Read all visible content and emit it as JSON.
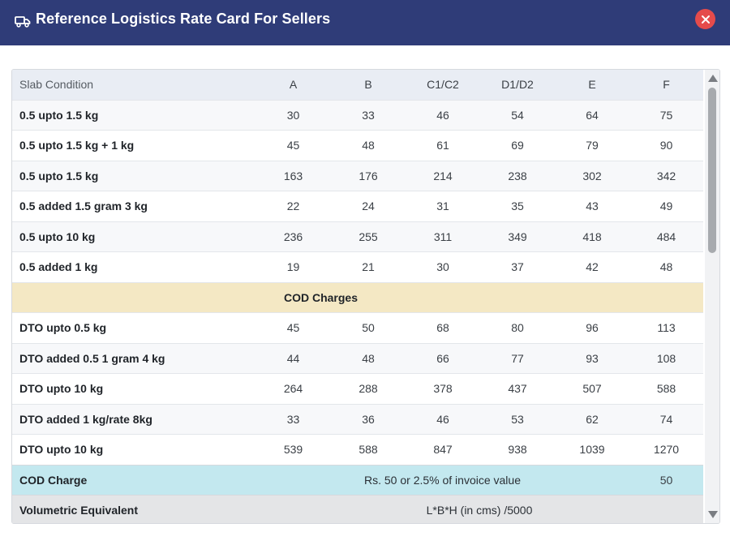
{
  "window": {
    "title": "Reference Logistics Rate Card For Sellers"
  },
  "icons": {
    "header": "truck-icon",
    "close": "close-icon"
  },
  "colors": {
    "header_bg": "#2f3c78",
    "close_bg": "#e54b4b",
    "section_bg": "#f4e8c4",
    "cod_bg": "#c3e8ef",
    "volumetric_bg": "#e4e5e7"
  },
  "table": {
    "headers": [
      "Slab Condition",
      "A",
      "B",
      "C1/C2",
      "D1/D2",
      "E",
      "F"
    ],
    "rows_forward": [
      {
        "label": "0.5 upto 1.5 kg",
        "values": [
          "30",
          "33",
          "46",
          "54",
          "64",
          "75"
        ]
      },
      {
        "label": "0.5 upto 1.5 kg + 1 kg",
        "values": [
          "45",
          "48",
          "61",
          "69",
          "79",
          "90"
        ]
      },
      {
        "label": "0.5 upto 1.5 kg",
        "values": [
          "163",
          "176",
          "214",
          "238",
          "302",
          "342"
        ]
      },
      {
        "label": "0.5 added 1.5 gram 3 kg",
        "values": [
          "22",
          "24",
          "31",
          "35",
          "43",
          "49"
        ]
      },
      {
        "label": "0.5 upto 10 kg",
        "values": [
          "236",
          "255",
          "311",
          "349",
          "418",
          "484"
        ]
      },
      {
        "label": "0.5 added 1 kg",
        "values": [
          "19",
          "21",
          "30",
          "37",
          "42",
          "48"
        ]
      }
    ],
    "section_title": "COD Charges",
    "rows_dto": [
      {
        "label": "DTO upto 0.5 kg",
        "values": [
          "45",
          "50",
          "68",
          "80",
          "96",
          "113"
        ]
      },
      {
        "label": "DTO added 0.5 1 gram 4 kg",
        "values": [
          "44",
          "48",
          "66",
          "77",
          "93",
          "108"
        ]
      },
      {
        "label": "DTO upto 10 kg",
        "values": [
          "264",
          "288",
          "378",
          "437",
          "507",
          "588"
        ]
      },
      {
        "label": "DTO added 1 kg/rate 8kg",
        "values": [
          "33",
          "36",
          "46",
          "53",
          "62",
          "74"
        ]
      },
      {
        "label": "DTO upto 10 kg",
        "values": [
          "539",
          "588",
          "847",
          "938",
          "1039",
          "1270"
        ]
      }
    ],
    "cod_charge": {
      "label": "COD Charge",
      "text": "Rs. 50 or 2.5% of invoice value",
      "value": "50"
    },
    "volumetric": {
      "label": "Volumetric Equivalent",
      "text": "L*B*H (in cms) /5000"
    }
  }
}
